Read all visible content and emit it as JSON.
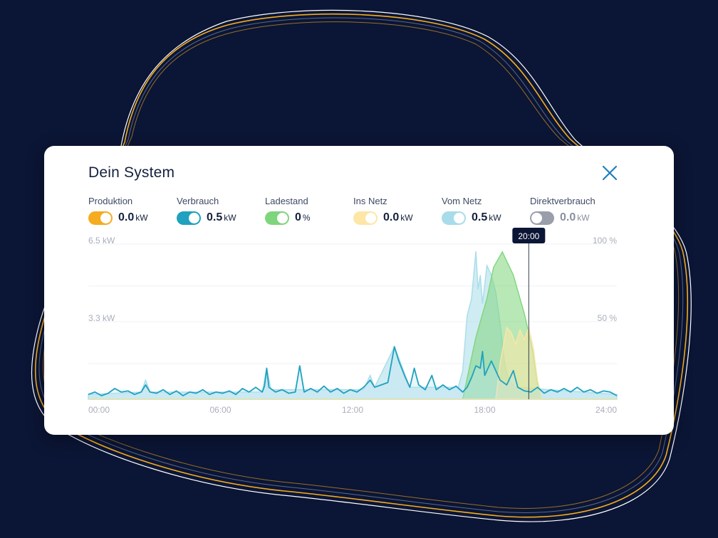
{
  "card": {
    "title": "Dein System"
  },
  "legend": [
    {
      "label": "Produktion",
      "value": "0.0",
      "unit": "kW",
      "color": "#f5ac1f",
      "enabled": true
    },
    {
      "label": "Verbrauch",
      "value": "0.5",
      "unit": "kW",
      "color": "#1fa1bf",
      "enabled": true
    },
    {
      "label": "Ladestand",
      "value": "0",
      "unit": "%",
      "color": "#7fd57c",
      "enabled": true
    },
    {
      "label": "Ins Netz",
      "value": "0.0",
      "unit": "kW",
      "color": "#fde6a6",
      "enabled": true
    },
    {
      "label": "Vom Netz",
      "value": "0.5",
      "unit": "kW",
      "color": "#a8dcea",
      "enabled": true
    },
    {
      "label": "Direktverbrauch",
      "value": "0.0",
      "unit": "kW",
      "color": "#9a9eaa",
      "enabled": false
    }
  ],
  "icons": {
    "close": "close-icon"
  },
  "chart_data": {
    "type": "area",
    "x_tick_labels": [
      "00:00",
      "06:00",
      "12:00",
      "18:00",
      "24:00"
    ],
    "y_left_labels": [
      "6.5 kW",
      "3.3 kW"
    ],
    "y_right_labels": [
      "100 %",
      "50 %"
    ],
    "y_left_range": [
      0,
      6.5
    ],
    "y_right_range": [
      0,
      100
    ],
    "x_range": [
      0,
      24
    ],
    "grid": true,
    "cursor_label": "20:00",
    "cursor_time": 20,
    "series": [
      {
        "name": "Verbrauch",
        "color": "#1fa1bf",
        "style": "line",
        "axis": "left",
        "points": [
          [
            0,
            0.2
          ],
          [
            0.3,
            0.3
          ],
          [
            0.6,
            0.15
          ],
          [
            0.9,
            0.25
          ],
          [
            1.2,
            0.45
          ],
          [
            1.5,
            0.3
          ],
          [
            1.8,
            0.35
          ],
          [
            2.1,
            0.2
          ],
          [
            2.4,
            0.3
          ],
          [
            2.6,
            0.6
          ],
          [
            2.8,
            0.3
          ],
          [
            3.1,
            0.25
          ],
          [
            3.4,
            0.4
          ],
          [
            3.7,
            0.2
          ],
          [
            4.0,
            0.35
          ],
          [
            4.3,
            0.15
          ],
          [
            4.6,
            0.3
          ],
          [
            4.9,
            0.25
          ],
          [
            5.2,
            0.4
          ],
          [
            5.5,
            0.2
          ],
          [
            5.8,
            0.3
          ],
          [
            6.1,
            0.25
          ],
          [
            6.4,
            0.35
          ],
          [
            6.7,
            0.2
          ],
          [
            7.0,
            0.45
          ],
          [
            7.3,
            0.3
          ],
          [
            7.6,
            0.5
          ],
          [
            7.9,
            0.3
          ],
          [
            8.0,
            0.55
          ],
          [
            8.1,
            1.3
          ],
          [
            8.2,
            0.5
          ],
          [
            8.5,
            0.3
          ],
          [
            8.8,
            0.4
          ],
          [
            9.1,
            0.25
          ],
          [
            9.4,
            0.3
          ],
          [
            9.6,
            1.4
          ],
          [
            9.8,
            0.3
          ],
          [
            10.1,
            0.45
          ],
          [
            10.4,
            0.3
          ],
          [
            10.7,
            0.55
          ],
          [
            11.0,
            0.3
          ],
          [
            11.3,
            0.45
          ],
          [
            11.6,
            0.25
          ],
          [
            11.9,
            0.4
          ],
          [
            12.2,
            0.3
          ],
          [
            12.5,
            0.5
          ],
          [
            12.8,
            0.8
          ],
          [
            13.0,
            0.5
          ],
          [
            13.3,
            0.6
          ],
          [
            13.6,
            0.7
          ],
          [
            13.9,
            2.2
          ],
          [
            14.1,
            1.6
          ],
          [
            14.4,
            0.9
          ],
          [
            14.6,
            0.5
          ],
          [
            14.8,
            1.3
          ],
          [
            15.0,
            0.6
          ],
          [
            15.3,
            0.4
          ],
          [
            15.6,
            1.0
          ],
          [
            15.8,
            0.4
          ],
          [
            16.1,
            0.6
          ],
          [
            16.4,
            0.4
          ],
          [
            16.7,
            0.55
          ],
          [
            17.0,
            0.3
          ],
          [
            17.2,
            0.5
          ],
          [
            17.4,
            0.9
          ],
          [
            17.6,
            1.4
          ],
          [
            17.8,
            1.3
          ],
          [
            17.9,
            2.0
          ],
          [
            18.0,
            1.0
          ],
          [
            18.3,
            1.6
          ],
          [
            18.5,
            1.2
          ],
          [
            18.7,
            0.8
          ],
          [
            19.0,
            0.6
          ],
          [
            19.3,
            1.2
          ],
          [
            19.5,
            0.5
          ],
          [
            19.8,
            0.35
          ],
          [
            20.1,
            0.3
          ],
          [
            20.4,
            0.5
          ],
          [
            20.7,
            0.25
          ],
          [
            21.0,
            0.4
          ],
          [
            21.3,
            0.3
          ],
          [
            21.6,
            0.45
          ],
          [
            21.9,
            0.3
          ],
          [
            22.2,
            0.5
          ],
          [
            22.5,
            0.3
          ],
          [
            22.8,
            0.4
          ],
          [
            23.1,
            0.25
          ],
          [
            23.4,
            0.35
          ],
          [
            23.7,
            0.3
          ],
          [
            24.0,
            0.15
          ]
        ]
      },
      {
        "name": "Vom Netz",
        "color": "#a8dcea",
        "style": "area",
        "axis": "left",
        "points": [
          [
            0,
            0.2
          ],
          [
            2.4,
            0.3
          ],
          [
            2.6,
            0.8
          ],
          [
            2.8,
            0.3
          ],
          [
            7.9,
            0.3
          ],
          [
            8.1,
            1.3
          ],
          [
            8.3,
            0.4
          ],
          [
            12.5,
            0.4
          ],
          [
            12.8,
            1.0
          ],
          [
            13.0,
            0.5
          ],
          [
            13.9,
            2.2
          ],
          [
            14.6,
            0.5
          ],
          [
            16.8,
            0.5
          ],
          [
            17.0,
            1.2
          ],
          [
            17.2,
            3.5
          ],
          [
            17.4,
            4.2
          ],
          [
            17.6,
            6.2
          ],
          [
            17.7,
            4.6
          ],
          [
            17.8,
            5.2
          ],
          [
            17.9,
            4.0
          ],
          [
            18.1,
            5.6
          ],
          [
            18.3,
            5.2
          ],
          [
            18.5,
            4.5
          ],
          [
            18.7,
            3.2
          ],
          [
            18.9,
            1.5
          ],
          [
            19.1,
            0.8
          ],
          [
            19.4,
            0.5
          ],
          [
            24,
            0.2
          ]
        ]
      },
      {
        "name": "Ladestand",
        "color": "#7fd57c",
        "style": "area",
        "axis": "right",
        "points": [
          [
            0,
            0
          ],
          [
            17.0,
            0
          ],
          [
            17.6,
            40
          ],
          [
            18.1,
            65
          ],
          [
            18.4,
            85
          ],
          [
            18.8,
            95
          ],
          [
            19.3,
            80
          ],
          [
            19.8,
            55
          ],
          [
            20.2,
            30
          ],
          [
            20.4,
            10
          ],
          [
            20.6,
            0
          ],
          [
            24,
            0
          ]
        ]
      },
      {
        "name": "Ins Netz",
        "color": "#fde6a6",
        "style": "area",
        "axis": "left",
        "points": [
          [
            0,
            0
          ],
          [
            18.5,
            0
          ],
          [
            18.7,
            1.5
          ],
          [
            19.0,
            3.0
          ],
          [
            19.2,
            2.8
          ],
          [
            19.4,
            2.3
          ],
          [
            19.6,
            2.9
          ],
          [
            19.8,
            2.5
          ],
          [
            20.0,
            3.0
          ],
          [
            20.2,
            2.2
          ],
          [
            20.4,
            0.8
          ],
          [
            20.6,
            0
          ],
          [
            24,
            0
          ]
        ]
      }
    ]
  }
}
